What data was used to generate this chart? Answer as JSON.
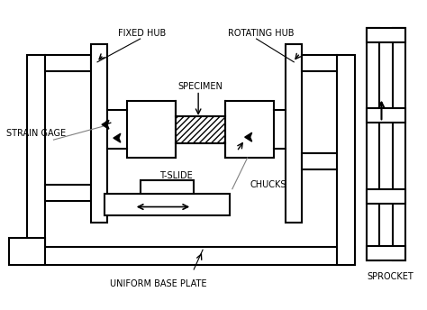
{
  "bg_color": "#ffffff",
  "line_color": "#000000",
  "lw": 1.5,
  "labels": {
    "strain_gage": "STRAIN GAGE",
    "fixed_hub": "FIXED HUB",
    "specimen": "SPECIMEN",
    "rotating_hub": "ROTATING HUB",
    "t_slide": "T-SLIDE",
    "chucks": "CHUCKS",
    "base_plate": "UNIFORM BASE PLATE",
    "sprocket": "SPROCKET"
  },
  "fontsize": 7
}
